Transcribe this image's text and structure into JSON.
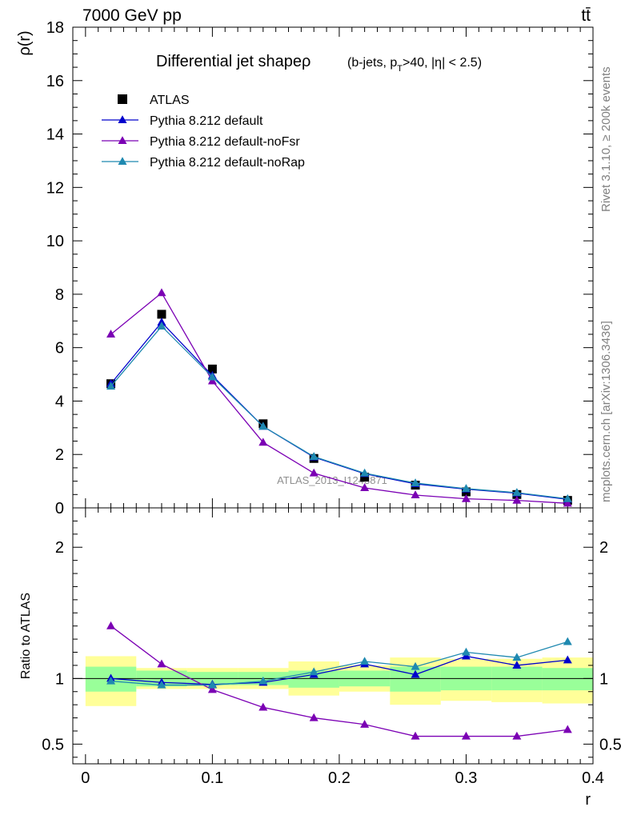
{
  "header": {
    "energy": "7000 GeV pp",
    "process": "tt̄"
  },
  "side_texts": {
    "rivet": "Rivet 3.1.10, ≥ 200k events",
    "mcplots": "mcplots.cern.ch [arXiv:1306.3436]"
  },
  "watermark": "ATLAS_2013_I1243871",
  "chart_data": [
    {
      "type": "line",
      "title": "Differential jet shapeρ",
      "subtitle": "(b-jets, p_T>40, |η| < 2.5)",
      "ylabel": "ρ(r)",
      "xlabel": "",
      "xlim": [
        -0.01,
        0.4
      ],
      "ylim": [
        0,
        18
      ],
      "x": [
        0.02,
        0.06,
        0.1,
        0.14,
        0.18,
        0.22,
        0.26,
        0.3,
        0.34,
        0.38
      ],
      "series": [
        {
          "name": "ATLAS",
          "color": "#000000",
          "marker": "square",
          "values": [
            4.65,
            7.25,
            5.2,
            3.15,
            1.85,
            1.15,
            0.85,
            0.6,
            0.5,
            0.28
          ]
        },
        {
          "name": "Pythia 8.212 default",
          "color": "#0000cc",
          "marker": "triangle",
          "values": [
            4.65,
            6.95,
            4.95,
            3.05,
            1.9,
            1.28,
            0.9,
            0.7,
            0.55,
            0.32
          ]
        },
        {
          "name": "Pythia 8.212 default-noFsr",
          "color": "#7b00b4",
          "marker": "triangle",
          "values": [
            6.5,
            8.05,
            4.75,
            2.45,
            1.3,
            0.75,
            0.48,
            0.34,
            0.28,
            0.17
          ]
        },
        {
          "name": "Pythia 8.212 default-noRap",
          "color": "#1f89b0",
          "marker": "triangle",
          "values": [
            4.55,
            6.8,
            4.9,
            3.05,
            1.92,
            1.3,
            0.93,
            0.72,
            0.57,
            0.34
          ]
        }
      ],
      "legend": [
        "ATLAS",
        "Pythia 8.212 default",
        "Pythia 8.212 default-noFsr",
        "Pythia 8.212 default-noRap"
      ],
      "yticks": [
        "0",
        "2",
        "4",
        "6",
        "8",
        "10",
        "12",
        "14",
        "16",
        "18"
      ]
    },
    {
      "type": "line",
      "title": "",
      "ylabel": "Ratio to ATLAS",
      "xlabel": "r",
      "xlim": [
        -0.01,
        0.4
      ],
      "ylim": [
        0.35,
        2.3
      ],
      "x": [
        0.02,
        0.06,
        0.1,
        0.14,
        0.18,
        0.22,
        0.26,
        0.3,
        0.34,
        0.38
      ],
      "bins": [
        [
          0.0,
          0.04
        ],
        [
          0.04,
          0.08
        ],
        [
          0.08,
          0.12
        ],
        [
          0.12,
          0.16
        ],
        [
          0.16,
          0.2
        ],
        [
          0.2,
          0.24
        ],
        [
          0.24,
          0.28
        ],
        [
          0.28,
          0.32
        ],
        [
          0.32,
          0.36
        ],
        [
          0.36,
          0.4
        ]
      ],
      "band_total": [
        [
          0.79,
          1.17
        ],
        [
          0.92,
          1.08
        ],
        [
          0.92,
          1.08
        ],
        [
          0.92,
          1.08
        ],
        [
          0.87,
          1.13
        ],
        [
          0.9,
          1.1
        ],
        [
          0.8,
          1.16
        ],
        [
          0.83,
          1.15
        ],
        [
          0.82,
          1.15
        ],
        [
          0.81,
          1.16
        ]
      ],
      "band_stat": [
        [
          0.9,
          1.09
        ],
        [
          0.94,
          1.06
        ],
        [
          0.95,
          1.05
        ],
        [
          0.95,
          1.05
        ],
        [
          0.93,
          1.06
        ],
        [
          0.94,
          1.06
        ],
        [
          0.9,
          1.09
        ],
        [
          0.91,
          1.09
        ],
        [
          0.91,
          1.09
        ],
        [
          0.91,
          1.08
        ]
      ],
      "series": [
        {
          "name": "Pythia 8.212 default",
          "color": "#0000cc",
          "values": [
            1.0,
            0.97,
            0.955,
            0.97,
            1.03,
            1.11,
            1.03,
            1.17,
            1.1,
            1.14
          ]
        },
        {
          "name": "Pythia 8.212 default-noFsr",
          "color": "#7b00b4",
          "values": [
            1.4,
            1.11,
            0.915,
            0.78,
            0.7,
            0.65,
            0.56,
            0.56,
            0.56,
            0.61
          ]
        },
        {
          "name": "Pythia 8.212 default-noRap",
          "color": "#1f89b0",
          "values": [
            0.98,
            0.95,
            0.95,
            0.98,
            1.05,
            1.13,
            1.09,
            1.2,
            1.16,
            1.28
          ]
        }
      ],
      "yticks": [
        "0.5",
        "1",
        "2"
      ],
      "xticks": [
        "0",
        "0.1",
        "0.2",
        "0.3",
        "0.4"
      ],
      "colors": {
        "band_total": "#ffff99",
        "band_stat": "#99ff99"
      }
    }
  ]
}
